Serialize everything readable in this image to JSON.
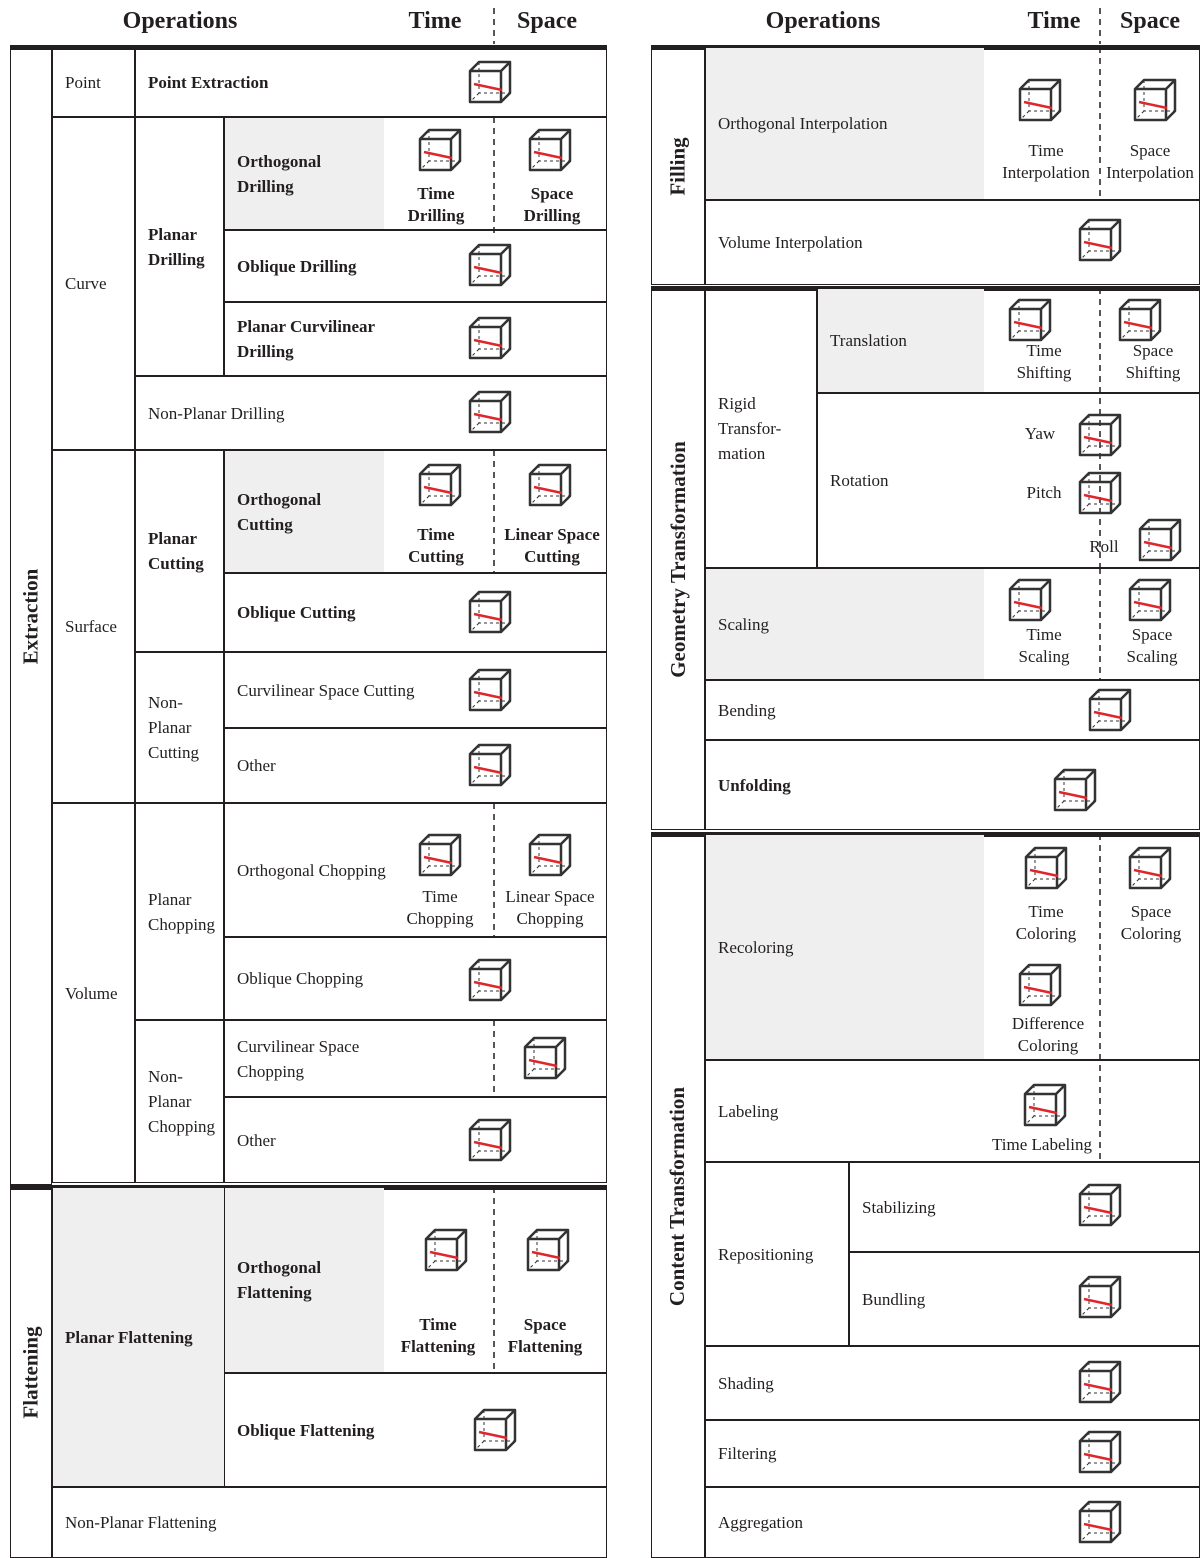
{
  "left": {
    "header": {
      "operations": "Operations",
      "time": "Time",
      "space": "Space"
    },
    "cells": [
      "Extraction",
      "Point",
      "Point Extraction",
      "Curve",
      "Planar Drilling",
      "Orthogonal Drilling",
      "Oblique Drilling",
      "Planar Curvilinear Drilling",
      "Non-Planar Drilling",
      "Surface",
      "Planar Cutting",
      "Orthogonal Cutting",
      "Oblique Cutting",
      "Non-Planar Cutting",
      "Curvilinear Space Cutting",
      "Other",
      "Volume",
      "Planar Chopping",
      "Orthogonal Chopping",
      "Oblique Chopping",
      "Non-Planar Chopping",
      "Curvilinear Space Chopping",
      "Other",
      "Flattening",
      "Planar Flattening",
      "Orthogonal Flattening",
      "Oblique Flattening",
      "Non-Planar Flattening"
    ],
    "captions": [
      "Time Drilling",
      "Space Drilling",
      "Time Cutting",
      "Linear Space Cutting",
      "Time Chopping",
      "Linear Space Chopping",
      "Time Flattening",
      "Space Flattening"
    ]
  },
  "right": {
    "header": {
      "operations": "Operations",
      "time": "Time",
      "space": "Space"
    },
    "cells": [
      "Filling",
      "Orthogonal Interpolation",
      "Volume Interpolation",
      "Geometry Transformation",
      "Rigid Transfor-mation",
      "Translation",
      "Rotation",
      "Scaling",
      "Bending",
      "Unfolding",
      "Content Transformation",
      "Recoloring",
      "Labeling",
      "Repositioning",
      "Stabilizing",
      "Bundling",
      "Shading",
      "Filtering",
      "Aggregation"
    ],
    "captions": [
      "Time Interpolation",
      "Space Interpolation",
      "Time Shifting",
      "Space Shifting",
      "Yaw",
      "Pitch",
      "Roll",
      "Time Scaling",
      "Space Scaling",
      "Time Coloring",
      "Space Coloring",
      "Difference Coloring",
      "Time Labeling"
    ]
  }
}
